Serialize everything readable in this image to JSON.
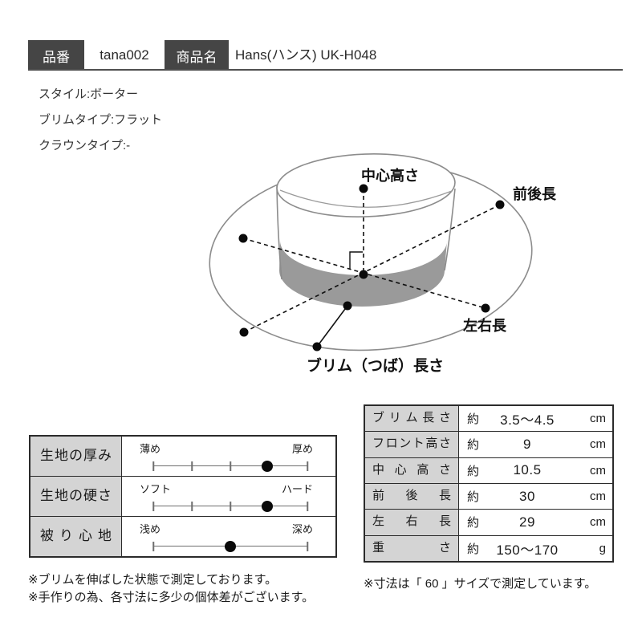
{
  "header": {
    "item_no_label": "品番",
    "item_no_value": "tana002",
    "product_label": "商品名",
    "product_value": "Hans(ハンス) UK-H048"
  },
  "specs": [
    "スタイル:ボーター",
    "ブリムタイプ:フラット",
    "クラウンタイプ:-"
  ],
  "diagram": {
    "labels": {
      "center_height": "中心高さ",
      "front_back": "前後長",
      "left_right": "左右長",
      "brim": "ブリム（つば）長さ"
    }
  },
  "sliders": {
    "rows": [
      {
        "label": "生地の厚み",
        "min": "薄め",
        "max": "厚め",
        "value": 0.74,
        "ticks": [
          0,
          0.25,
          0.5,
          1
        ]
      },
      {
        "label": "生地の硬さ",
        "min": "ソフト",
        "max": "ハード",
        "value": 0.74,
        "ticks": [
          0,
          0.25,
          0.5,
          1
        ]
      },
      {
        "label": "被り心地",
        "min": "浅め",
        "max": "深め",
        "value": 0.5,
        "ticks": [
          0,
          1
        ]
      }
    ]
  },
  "measurements": {
    "rows": [
      {
        "label": "ブリム長さ",
        "approx": "約",
        "value": "3.5〜4.5",
        "unit": "cm"
      },
      {
        "label": "フロント高さ",
        "approx": "約",
        "value": "9",
        "unit": "cm"
      },
      {
        "label": "中心高さ",
        "approx": "約",
        "value": "10.5",
        "unit": "cm"
      },
      {
        "label": "前後長",
        "approx": "約",
        "value": "30",
        "unit": "cm"
      },
      {
        "label": "左右長",
        "approx": "約",
        "value": "29",
        "unit": "cm"
      },
      {
        "label": "重さ",
        "approx": "約",
        "value": "150〜170",
        "unit": "g"
      }
    ]
  },
  "notes": {
    "left": [
      "※ブリムを伸ばした状態で測定しております。",
      "※手作りの為、各寸法に多少の個体差がございます。"
    ],
    "right": "※寸法は「 60 」サイズで測定しています。"
  },
  "colors": {
    "header_box_bg": "#454545",
    "header_box_text": "#ffffff",
    "table_label_bg": "#d4d4d4",
    "table_border": "#2b2b2b",
    "hat_band_gray": "#9a9a9a",
    "hat_outline_gray": "#8c8c8c",
    "marker_black": "#0a0a0a"
  }
}
